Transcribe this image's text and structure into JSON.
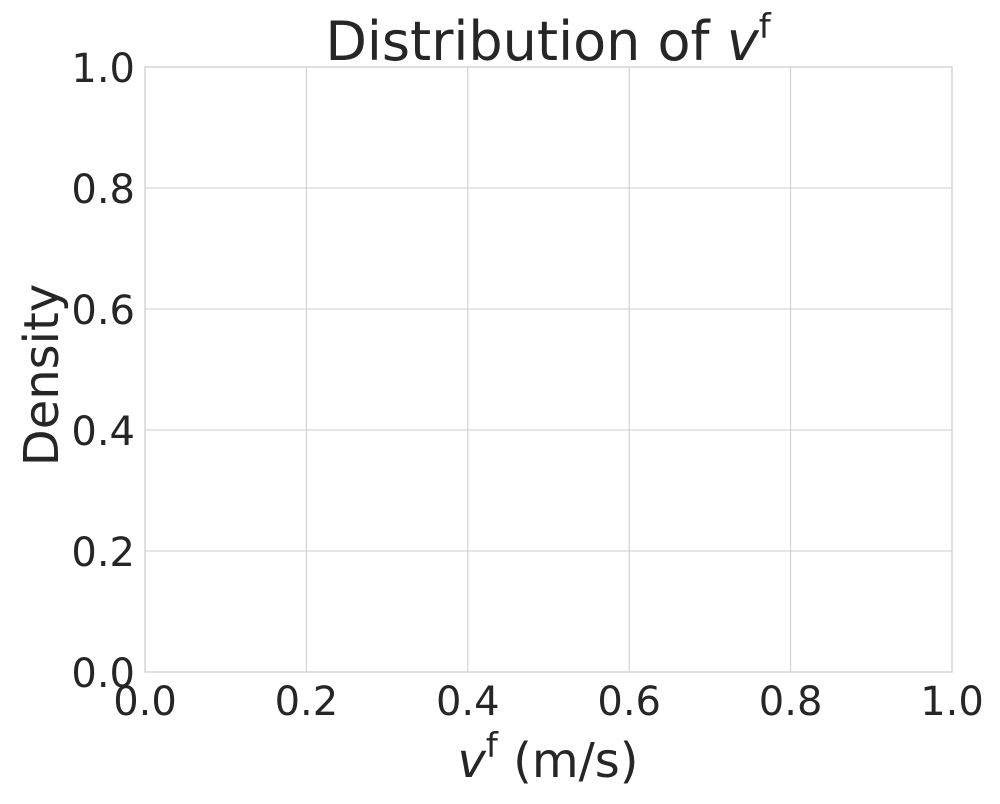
{
  "chart_data": {
    "type": "bar",
    "title": {
      "main": "Distribution of ",
      "var": "v",
      "sup": "f"
    },
    "xlabel": {
      "var": "v",
      "sup": "f",
      "unit": " (m/s)"
    },
    "ylabel": "Density",
    "xlim": [
      0.0,
      1.0
    ],
    "ylim": [
      0.0,
      1.0
    ],
    "xticks": [
      0.0,
      0.2,
      0.4,
      0.6,
      0.8,
      1.0
    ],
    "yticks": [
      0.0,
      0.2,
      0.4,
      0.6,
      0.8,
      1.0
    ],
    "xtick_labels": [
      "0.0",
      "0.2",
      "0.4",
      "0.6",
      "0.8",
      "1.0"
    ],
    "ytick_labels": [
      "0.0",
      "0.2",
      "0.4",
      "0.6",
      "0.8",
      "1.0"
    ],
    "grid": true,
    "series": [],
    "colors": {
      "grid": "#cccccc",
      "spine": "#cccccc",
      "text": "#262626",
      "background": "#ffffff"
    }
  }
}
